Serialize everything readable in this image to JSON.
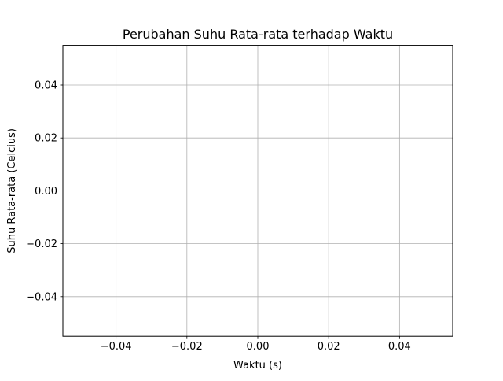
{
  "chart_data": {
    "type": "line",
    "title": "Perubahan Suhu Rata-rata terhadap Waktu",
    "xlabel": "Waktu (s)",
    "ylabel": "Suhu Rata-rata (Celcius)",
    "xlim": [
      -0.055,
      0.055
    ],
    "ylim": [
      -0.055,
      0.055
    ],
    "x_ticks": [
      -0.04,
      -0.02,
      0.0,
      0.02,
      0.04
    ],
    "x_tick_labels": [
      "−0.04",
      "−0.02",
      "0.00",
      "0.02",
      "0.04"
    ],
    "y_ticks": [
      -0.04,
      -0.02,
      0.0,
      0.02,
      0.04
    ],
    "y_tick_labels": [
      "−0.04",
      "−0.02",
      "0.00",
      "0.02",
      "0.04"
    ],
    "grid": true,
    "series": [
      {
        "x": [],
        "y": []
      }
    ],
    "colors": {
      "grid": "#b0b0b0",
      "axes": "#000000",
      "background": "#ffffff"
    }
  }
}
